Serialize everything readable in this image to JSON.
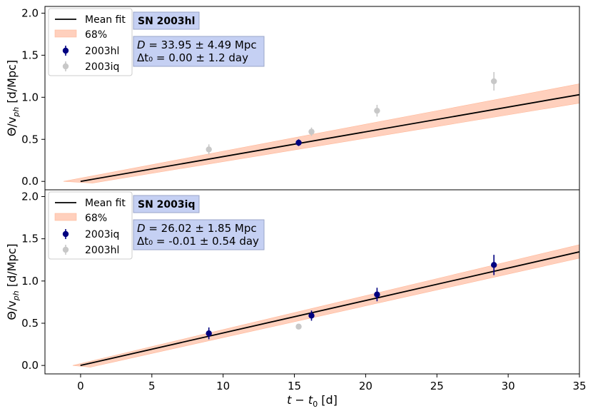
{
  "chart_data": {
    "type": "scatter",
    "x_axis": {
      "label_main": "t − t",
      "label_sub": "0",
      "label_unit": " [d]",
      "xlim": [
        -2.5,
        35
      ],
      "ticks": [
        0,
        5,
        10,
        15,
        20,
        25,
        30,
        35
      ],
      "tick_labels": [
        "0",
        "5",
        "10",
        "15",
        "20",
        "25",
        "30",
        "35"
      ]
    },
    "y_axis": {
      "label_main": "Θ/v",
      "label_sub": "ph",
      "label_unit": " [d/Mpc]",
      "ylim": [
        -0.1,
        2.08
      ],
      "ticks": [
        0.0,
        0.5,
        1.0,
        1.5,
        2.0
      ],
      "tick_labels": [
        "0.0",
        "0.5",
        "1.0",
        "1.5",
        "2.0"
      ]
    },
    "panels": [
      {
        "title": "SN 2003hl",
        "distance_line": "D  =  33.95 ± 4.49 Mpc",
        "dt_line": "Δt₀  =  0.00 ± 1.2 day",
        "legend": [
          "Mean fit",
          "68%",
          "2003hl",
          "2003iq"
        ],
        "fit": {
          "x0": 0.0,
          "slope": 0.02946,
          "band_start": -1.2,
          "band_at_x35": [
            0.93,
            1.16
          ]
        },
        "primary": {
          "name": "2003hl",
          "color": "#000080",
          "x": [
            15.3
          ],
          "y": [
            0.46
          ],
          "err": [
            0.04
          ]
        },
        "secondary": {
          "name": "2003iq",
          "color": "#c8c8c8",
          "x": [
            9.0,
            16.2,
            20.8,
            29.0
          ],
          "y": [
            0.38,
            0.59,
            0.84,
            1.19
          ],
          "err": [
            0.06,
            0.05,
            0.07,
            0.11
          ]
        }
      },
      {
        "title": "SN 2003iq",
        "distance_line": "D  =  26.02 ± 1.85 Mpc",
        "dt_line": "Δt₀  =  -0.01 ± 0.54 day",
        "legend": [
          "Mean fit",
          "68%",
          "2003iq",
          "2003hl"
        ],
        "fit": {
          "x0": -0.01,
          "slope": 0.03843,
          "band_start": -0.55,
          "band_at_x35": [
            1.27,
            1.43
          ]
        },
        "primary": {
          "name": "2003iq",
          "color": "#000080",
          "x": [
            9.0,
            16.2,
            20.8,
            29.0
          ],
          "y": [
            0.38,
            0.59,
            0.84,
            1.19
          ],
          "err": [
            0.07,
            0.06,
            0.08,
            0.12
          ]
        },
        "secondary": {
          "name": "2003hl",
          "color": "#c8c8c8",
          "x": [
            15.3
          ],
          "y": [
            0.46
          ],
          "err": [
            0.03
          ]
        }
      }
    ],
    "colors": {
      "fit_line": "#000000",
      "band": "#ffd0bd",
      "band_edge": "#ffb899",
      "info_box": "#c5d0f3",
      "info_box_edge": "#9aa6c8"
    }
  }
}
